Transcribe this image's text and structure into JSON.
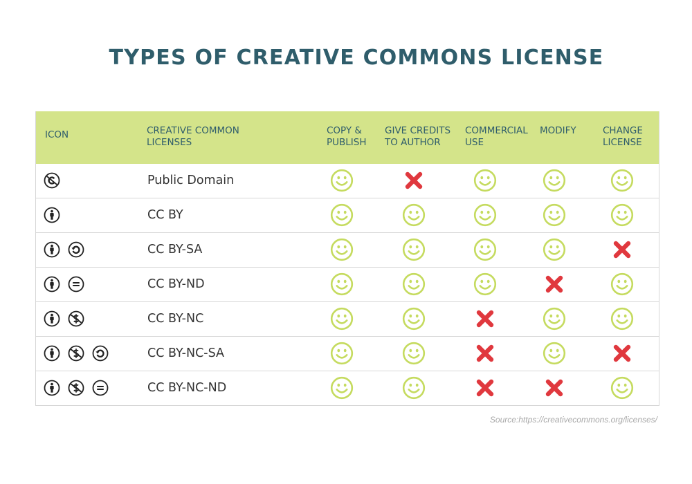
{
  "title": "TYPES OF CREATIVE COMMONS LICENSE",
  "colors": {
    "header_bg": "#d4e48a",
    "title": "#2f5d6b",
    "yes": "#c5db5f",
    "no": "#e0383e"
  },
  "headers": {
    "icon": "ICON",
    "licenses": [
      "CREATIVE COMMON",
      "LICENSES"
    ],
    "copy": [
      "COPY &",
      "PUBLISH"
    ],
    "credit": [
      "GIVE CREDITS",
      "TO AUTHOR"
    ],
    "commercial": [
      "COMMERCIAL",
      "USE"
    ],
    "modify": "MODIFY",
    "change": [
      "CHANGE",
      "LICENSE"
    ]
  },
  "rows": [
    {
      "name": "Public Domain",
      "icons": [
        "public-domain-icon"
      ],
      "values": [
        "yes",
        "no",
        "yes",
        "yes",
        "yes"
      ]
    },
    {
      "name": "CC BY",
      "icons": [
        "attribution-icon"
      ],
      "values": [
        "yes",
        "yes",
        "yes",
        "yes",
        "yes"
      ]
    },
    {
      "name": "CC BY-SA",
      "icons": [
        "attribution-icon",
        "share-alike-icon"
      ],
      "values": [
        "yes",
        "yes",
        "yes",
        "yes",
        "no"
      ]
    },
    {
      "name": "CC BY-ND",
      "icons": [
        "attribution-icon",
        "no-derivatives-icon"
      ],
      "values": [
        "yes",
        "yes",
        "yes",
        "no",
        "yes"
      ]
    },
    {
      "name": "CC BY-NC",
      "icons": [
        "attribution-icon",
        "non-commercial-icon"
      ],
      "values": [
        "yes",
        "yes",
        "no",
        "yes",
        "yes"
      ]
    },
    {
      "name": "CC BY-NC-SA",
      "icons": [
        "attribution-icon",
        "non-commercial-icon",
        "share-alike-icon"
      ],
      "values": [
        "yes",
        "yes",
        "no",
        "yes",
        "no"
      ]
    },
    {
      "name": "CC BY-NC-ND",
      "icons": [
        "attribution-icon",
        "non-commercial-icon",
        "no-derivatives-icon"
      ],
      "values": [
        "yes",
        "yes",
        "no",
        "no",
        "yes"
      ]
    }
  ],
  "source": "Source:https://creativecommons.org/licenses/"
}
